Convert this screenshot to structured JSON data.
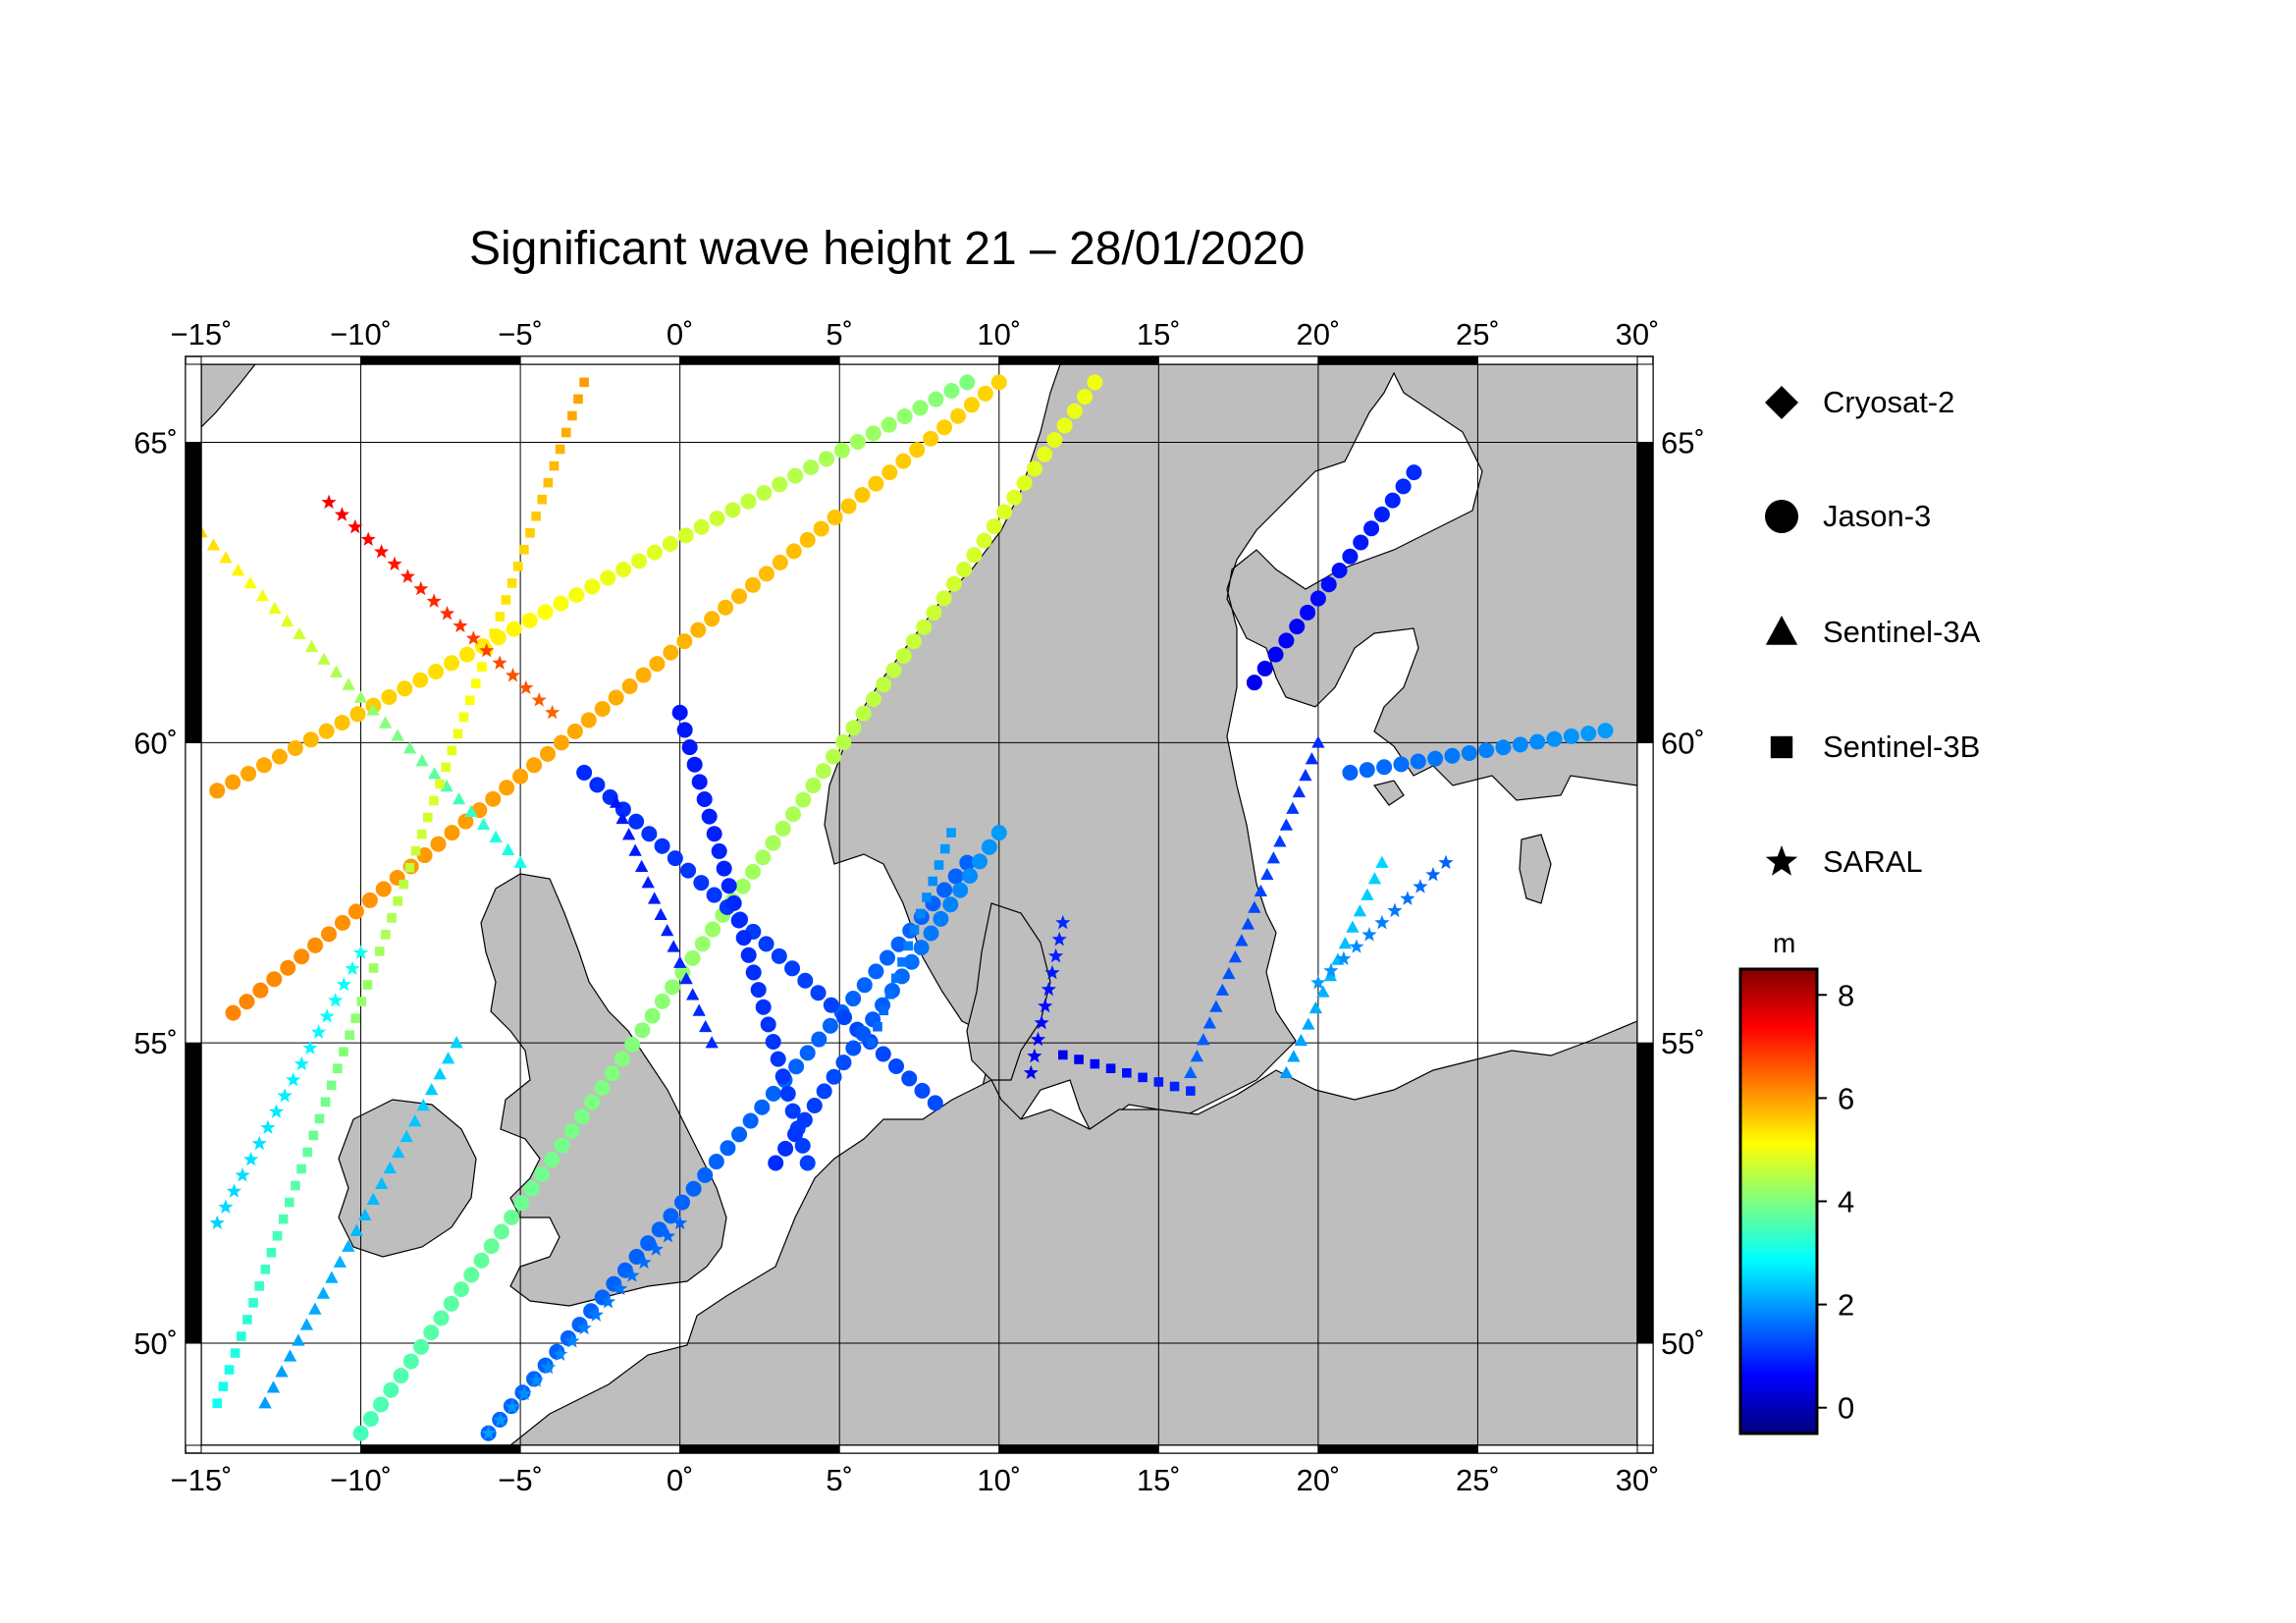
{
  "title": "Significant wave height 21 – 28/01/2020",
  "map": {
    "lon_range": [
      -15,
      30
    ],
    "lat_range": [
      48.3,
      66.3
    ],
    "lon_ticks": [
      -15,
      -10,
      -5,
      0,
      5,
      10,
      15,
      20,
      25,
      30
    ],
    "lat_ticks": [
      50,
      55,
      60,
      65
    ],
    "lon_labels": [
      "−15˚",
      "−10˚",
      "−5˚",
      "0˚",
      "5˚",
      "10˚",
      "15˚",
      "20˚",
      "25˚",
      "30˚"
    ],
    "lat_labels": [
      "50˚",
      "55˚",
      "60˚",
      "65˚"
    ],
    "land_color": "#bebebe",
    "sea_color": "#ffffff"
  },
  "legend": {
    "items": [
      {
        "label": "Cryosat-2",
        "symbol": "diamond"
      },
      {
        "label": "Jason-3",
        "symbol": "circle"
      },
      {
        "label": "Sentinel-3A",
        "symbol": "triangle"
      },
      {
        "label": "Sentinel-3B",
        "symbol": "square"
      },
      {
        "label": "SARAL",
        "symbol": "star"
      }
    ]
  },
  "colorbar": {
    "unit": "m",
    "min": -0.5,
    "max": 8.5,
    "ticks": [
      0,
      2,
      4,
      6,
      8
    ],
    "tick_labels": [
      "0",
      "2",
      "4",
      "6",
      "8"
    ],
    "colors": [
      "#00007f",
      "#0000ff",
      "#007fff",
      "#00ffff",
      "#7fff7f",
      "#ffff00",
      "#ff7f00",
      "#ff0000",
      "#7f0000"
    ]
  },
  "chart_data": {
    "type": "scatter",
    "title": "Significant wave height 21 – 28/01/2020",
    "xlim": [
      -15,
      30
    ],
    "ylim": [
      48.3,
      66.3
    ],
    "value_unit": "m",
    "tracks": [
      {
        "satellite": "Jason-3",
        "lon": [
          -14.5,
          9
        ],
        "lat": [
          59.2,
          66
        ],
        "swh": [
          6,
          4
        ]
      },
      {
        "satellite": "Jason-3",
        "lon": [
          -14,
          10
        ],
        "lat": [
          55.5,
          66
        ],
        "swh": [
          6.2,
          5.5
        ]
      },
      {
        "satellite": "Jason-3",
        "lon": [
          -10,
          13
        ],
        "lat": [
          48.5,
          66
        ],
        "swh": [
          3.5,
          5
        ]
      },
      {
        "satellite": "Jason-3",
        "lon": [
          -6,
          9
        ],
        "lat": [
          48.5,
          58
        ],
        "swh": [
          1.5,
          1.5
        ]
      },
      {
        "satellite": "Jason-3",
        "lon": [
          -3,
          8
        ],
        "lat": [
          59.5,
          54
        ],
        "swh": [
          1,
          1.3
        ]
      },
      {
        "satellite": "Jason-3",
        "lon": [
          0,
          4
        ],
        "lat": [
          60.5,
          53
        ],
        "swh": [
          0.8,
          1.2
        ]
      },
      {
        "satellite": "Jason-3",
        "lon": [
          3,
          10
        ],
        "lat": [
          53,
          58.5
        ],
        "swh": [
          1,
          2
        ]
      },
      {
        "satellite": "Jason-3",
        "lon": [
          21,
          29
        ],
        "lat": [
          59.5,
          60.2
        ],
        "swh": [
          1.5,
          2
        ]
      },
      {
        "satellite": "Jason-3",
        "lon": [
          18,
          23
        ],
        "lat": [
          61,
          64.5
        ],
        "swh": [
          0.5,
          1
        ]
      },
      {
        "satellite": "Sentinel-3A",
        "lon": [
          -15,
          -5
        ],
        "lat": [
          63.5,
          58
        ],
        "swh": [
          5.5,
          3
        ]
      },
      {
        "satellite": "Sentinel-3A",
        "lon": [
          -13,
          -7
        ],
        "lat": [
          49,
          55
        ],
        "swh": [
          2,
          2.5
        ]
      },
      {
        "satellite": "Sentinel-3A",
        "lon": [
          -2,
          1
        ],
        "lat": [
          59,
          55
        ],
        "swh": [
          0.8,
          1
        ]
      },
      {
        "satellite": "Sentinel-3A",
        "lon": [
          16,
          20
        ],
        "lat": [
          54.5,
          60
        ],
        "swh": [
          1.5,
          1
        ]
      },
      {
        "satellite": "Sentinel-3A",
        "lon": [
          19,
          22
        ],
        "lat": [
          54.5,
          58
        ],
        "swh": [
          2,
          2.5
        ]
      },
      {
        "satellite": "Sentinel-3B",
        "lon": [
          -14.5,
          -3
        ],
        "lat": [
          49,
          66
        ],
        "swh": [
          3,
          6
        ]
      },
      {
        "satellite": "Sentinel-3B",
        "lon": [
          6,
          8.5
        ],
        "lat": [
          55,
          58.5
        ],
        "swh": [
          1.5,
          2
        ]
      },
      {
        "satellite": "Sentinel-3B",
        "lon": [
          12,
          16
        ],
        "lat": [
          54.8,
          54.2
        ],
        "swh": [
          0.5,
          1
        ]
      },
      {
        "satellite": "SARAL",
        "lon": [
          -11,
          -4
        ],
        "lat": [
          64,
          60.5
        ],
        "swh": [
          7.5,
          6.5
        ]
      },
      {
        "satellite": "SARAL",
        "lon": [
          -14.5,
          -10
        ],
        "lat": [
          52,
          56.5
        ],
        "swh": [
          2.5,
          3
        ]
      },
      {
        "satellite": "SARAL",
        "lon": [
          -6,
          0
        ],
        "lat": [
          48.5,
          52
        ],
        "swh": [
          2,
          1.5
        ]
      },
      {
        "satellite": "SARAL",
        "lon": [
          11,
          12
        ],
        "lat": [
          54.5,
          57
        ],
        "swh": [
          0.5,
          1
        ]
      },
      {
        "satellite": "SARAL",
        "lon": [
          20,
          24
        ],
        "lat": [
          56,
          58
        ],
        "swh": [
          2,
          1.5
        ]
      }
    ]
  }
}
